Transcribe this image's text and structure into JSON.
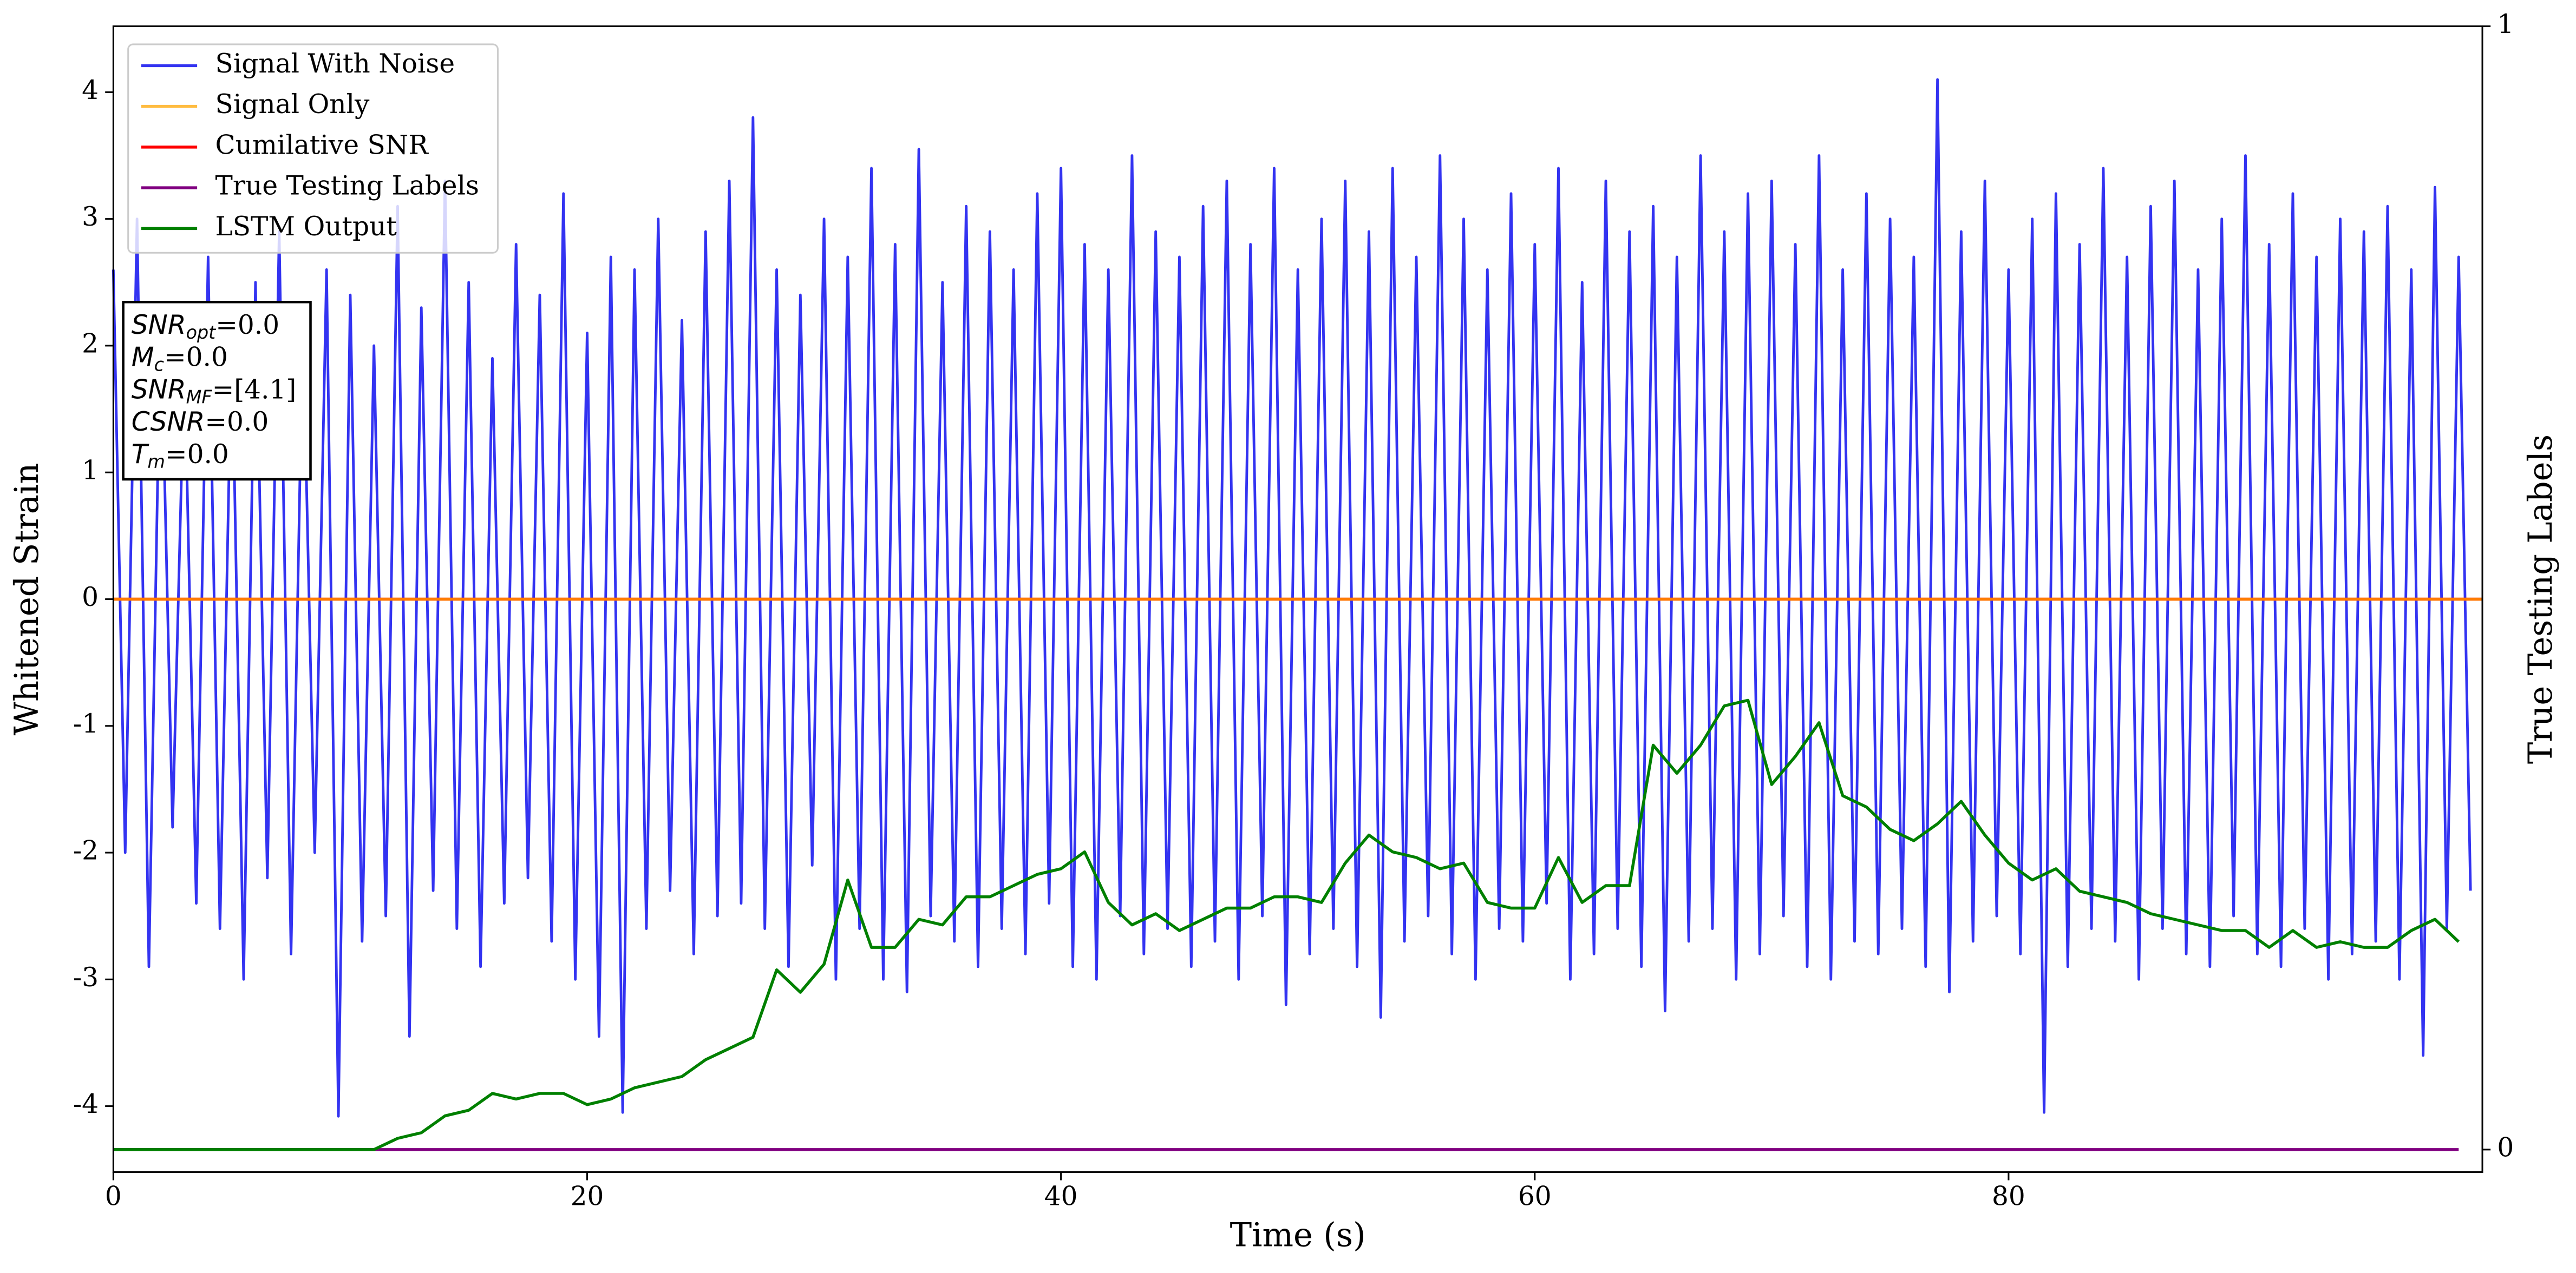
{
  "chart_data": {
    "type": "line",
    "xlabel": "Time (s)",
    "ylabel": "Whitened Strain",
    "y2label": "True Testing Labels",
    "xlim": [
      0,
      100
    ],
    "xticks": [
      0,
      20,
      40,
      60,
      80
    ],
    "ylim": [
      -4.52,
      4.52
    ],
    "yticks": [
      -4,
      -3,
      -2,
      -1,
      0,
      1,
      2,
      3,
      4
    ],
    "y2lim": [
      -0.02,
      1
    ],
    "y2ticks": [
      0,
      1
    ],
    "legend": "upper left",
    "grid": false,
    "series": [
      {
        "name": "Signal With Noise",
        "color": "#0000ee",
        "x": [
          0,
          0.5,
          1,
          1.5,
          2,
          2.5,
          3,
          3.5,
          4,
          4.5,
          5,
          5.5,
          6,
          6.5,
          7,
          7.5,
          8,
          8.5,
          9,
          9.5,
          10,
          10.5,
          11,
          11.5,
          12,
          12.5,
          13,
          13.5,
          14,
          14.5,
          15,
          15.5,
          16,
          16.5,
          17,
          17.5,
          18,
          18.5,
          19,
          19.5,
          20,
          20.5,
          21,
          21.5,
          22,
          22.5,
          23,
          23.5,
          24,
          24.5,
          25,
          25.5,
          26,
          26.5,
          27,
          27.5,
          28,
          28.5,
          29,
          29.5,
          30,
          30.5,
          31,
          31.5,
          32,
          32.5,
          33,
          33.5,
          34,
          34.5,
          35,
          35.5,
          36,
          36.5,
          37,
          37.5,
          38,
          38.5,
          39,
          39.5,
          40,
          40.5,
          41,
          41.5,
          42,
          42.5,
          43,
          43.5,
          44,
          44.5,
          45,
          45.5,
          46,
          46.5,
          47,
          47.5,
          48,
          48.5,
          49,
          49.5,
          50,
          50.5,
          51,
          51.5,
          52,
          52.5,
          53,
          53.5,
          54,
          54.5,
          55,
          55.5,
          56,
          56.5,
          57,
          57.5,
          58,
          58.5,
          59,
          59.5,
          60,
          60.5,
          61,
          61.5,
          62,
          62.5,
          63,
          63.5,
          64,
          64.5,
          65,
          65.5,
          66,
          66.5,
          67,
          67.5,
          68,
          68.5,
          69,
          69.5,
          70,
          70.5,
          71,
          71.5,
          72,
          72.5,
          73,
          73.5,
          74,
          74.5,
          75,
          75.5,
          76,
          76.5,
          77,
          77.5,
          78,
          78.5,
          79,
          79.5,
          80,
          80.5,
          81,
          81.5,
          82,
          82.5,
          83,
          83.5,
          84,
          84.5,
          85,
          85.5,
          86,
          86.5,
          87,
          87.5,
          88,
          88.5,
          89,
          89.5,
          90,
          90.5,
          91,
          91.5,
          92,
          92.5,
          93,
          93.5,
          94,
          94.5,
          95,
          95.5,
          96,
          96.5,
          97,
          97.5,
          98,
          98.5,
          99,
          99.5
        ],
        "values": [
          2.6,
          -2.0,
          3.0,
          -2.9,
          2.3,
          -1.8,
          1.9,
          -2.4,
          2.7,
          -2.6,
          2.1,
          -3.0,
          2.5,
          -2.2,
          2.9,
          -2.8,
          2.2,
          -2.0,
          2.6,
          -4.08,
          2.4,
          -2.7,
          2.0,
          -2.5,
          3.1,
          -3.45,
          2.3,
          -2.3,
          3.3,
          -2.6,
          2.5,
          -2.9,
          1.9,
          -2.4,
          2.8,
          -2.2,
          2.4,
          -2.7,
          3.2,
          -3.0,
          2.1,
          -3.45,
          2.7,
          -4.05,
          2.6,
          -2.6,
          3.0,
          -2.3,
          2.2,
          -2.8,
          2.9,
          -2.5,
          3.3,
          -2.4,
          3.8,
          -2.6,
          2.6,
          -2.9,
          2.4,
          -2.1,
          3.0,
          -3.0,
          2.7,
          -2.6,
          3.4,
          -3.0,
          2.8,
          -3.1,
          3.55,
          -2.5,
          2.5,
          -2.7,
          3.1,
          -2.9,
          2.9,
          -2.6,
          2.6,
          -2.8,
          3.2,
          -2.4,
          3.4,
          -2.9,
          2.8,
          -3.0,
          2.6,
          -2.5,
          3.5,
          -2.8,
          2.9,
          -2.6,
          2.7,
          -2.9,
          3.1,
          -2.7,
          3.3,
          -3.0,
          2.8,
          -2.5,
          3.4,
          -3.2,
          2.6,
          -2.8,
          3.0,
          -2.6,
          3.3,
          -2.9,
          2.9,
          -3.3,
          3.4,
          -2.7,
          2.7,
          -2.5,
          3.5,
          -2.8,
          3.0,
          -3.0,
          2.6,
          -2.6,
          3.2,
          -2.7,
          2.8,
          -2.4,
          3.4,
          -3.0,
          2.5,
          -2.8,
          3.3,
          -2.6,
          2.9,
          -2.9,
          3.1,
          -3.25,
          2.7,
          -2.7,
          3.5,
          -2.6,
          2.9,
          -3.0,
          3.2,
          -2.8,
          3.3,
          -2.5,
          2.8,
          -2.9,
          3.5,
          -3.0,
          2.6,
          -2.7,
          3.2,
          -2.8,
          3.0,
          -2.6,
          2.7,
          -2.9,
          4.1,
          -3.1,
          2.9,
          -2.7,
          3.3,
          -2.5,
          2.6,
          -2.8,
          3.0,
          -4.05,
          3.2,
          -2.9,
          2.8,
          -2.6,
          3.4,
          -2.7,
          2.7,
          -3.0,
          3.1,
          -2.6,
          3.3,
          -2.8,
          2.6,
          -2.9,
          3.0,
          -2.5,
          3.5,
          -2.8,
          2.8,
          -2.9,
          3.2,
          -2.6,
          2.7,
          -3.0,
          3.0,
          -2.8,
          2.9,
          -2.7,
          3.1,
          -3.0,
          2.6,
          -3.6,
          3.25,
          -2.6,
          2.7,
          -2.3
        ]
      },
      {
        "name": "Signal Only",
        "color": "#ffa500",
        "x": [
          0,
          100
        ],
        "values": [
          0,
          0
        ]
      },
      {
        "name": "Cumilative SNR",
        "color": "#ff0000",
        "x": [
          0,
          100
        ],
        "values": [
          0,
          0
        ]
      },
      {
        "name": "True Testing Labels",
        "color": "#800080",
        "axis": "y2",
        "x": [
          0,
          99
        ],
        "values": [
          0,
          0
        ]
      },
      {
        "name": "LSTM Output",
        "color": "#008000",
        "axis": "y2",
        "x": [
          0,
          1,
          2,
          3,
          4,
          5,
          6,
          7,
          8,
          9,
          10,
          11,
          12,
          13,
          14,
          15,
          16,
          17,
          18,
          19,
          20,
          21,
          22,
          23,
          24,
          25,
          26,
          27,
          28,
          29,
          30,
          31,
          32,
          33,
          34,
          35,
          36,
          37,
          38,
          39,
          40,
          41,
          42,
          43,
          44,
          45,
          46,
          47,
          48,
          49,
          50,
          51,
          52,
          53,
          54,
          55,
          56,
          57,
          58,
          59,
          60,
          61,
          62,
          63,
          64,
          65,
          66,
          67,
          68,
          69,
          70,
          71,
          72,
          73,
          74,
          75,
          76,
          77,
          78,
          79,
          80,
          81,
          82,
          83,
          84,
          85,
          86,
          87,
          88,
          89,
          90,
          91,
          92,
          93,
          94,
          95,
          96,
          97,
          98,
          99
        ],
        "values": [
          0,
          0,
          0,
          0,
          0,
          0,
          0,
          0,
          0,
          0,
          0,
          0,
          0.01,
          0.015,
          0.03,
          0.035,
          0.05,
          0.045,
          0.05,
          0.05,
          0.04,
          0.045,
          0.055,
          0.06,
          0.065,
          0.08,
          0.09,
          0.1,
          0.16,
          0.14,
          0.165,
          0.24,
          0.18,
          0.18,
          0.205,
          0.2,
          0.225,
          0.225,
          0.235,
          0.245,
          0.25,
          0.265,
          0.22,
          0.2,
          0.21,
          0.195,
          0.205,
          0.215,
          0.215,
          0.225,
          0.225,
          0.22,
          0.255,
          0.28,
          0.265,
          0.26,
          0.25,
          0.255,
          0.22,
          0.215,
          0.215,
          0.26,
          0.22,
          0.235,
          0.235,
          0.36,
          0.335,
          0.36,
          0.395,
          0.4,
          0.325,
          0.35,
          0.38,
          0.315,
          0.305,
          0.285,
          0.275,
          0.29,
          0.31,
          0.28,
          0.255,
          0.24,
          0.25,
          0.23,
          0.225,
          0.22,
          0.21,
          0.205,
          0.2,
          0.195,
          0.195,
          0.18,
          0.195,
          0.18,
          0.185,
          0.18,
          0.18,
          0.195,
          0.205,
          0.185
        ]
      }
    ],
    "annotations": [
      {
        "text": "SNR",
        "sub": "opt",
        "tail": "=0.0"
      },
      {
        "text": "M",
        "sub": "c",
        "tail": "=0.0"
      },
      {
        "text": "SNR",
        "sub": "MF",
        "tail": "=[4.1]"
      },
      {
        "text": "CSNR",
        "tail": "=0.0"
      },
      {
        "text": "T",
        "sub": "m",
        "tail": "=0.0"
      }
    ]
  }
}
